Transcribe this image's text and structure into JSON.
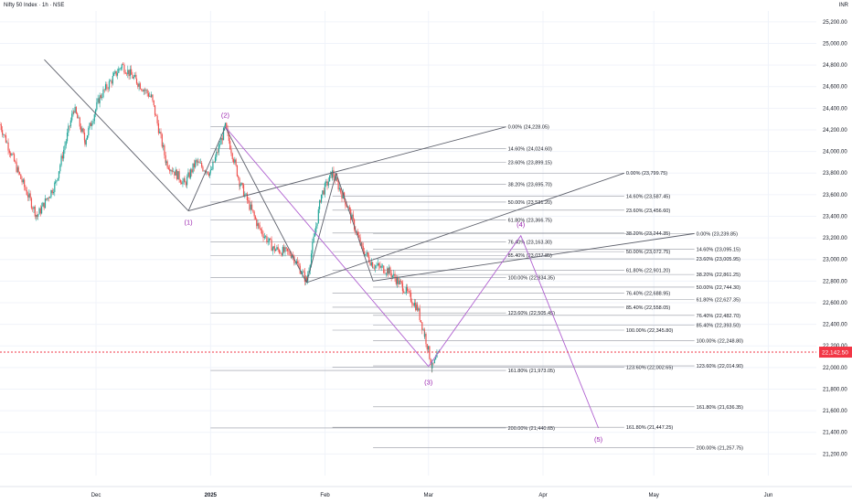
{
  "header": {
    "title": "Nifty 50 Index · 1h · NSE",
    "currency": "INR"
  },
  "colors": {
    "bull": "#26a69a",
    "bear": "#ef5350",
    "fib": "#9598a1",
    "trend": "#5d606b",
    "wave": "#b060d0",
    "wave_label": "#9c27b0",
    "price_tag": "#f23645",
    "grid": "#f0f3fa"
  },
  "chart_data": {
    "type": "candlestick",
    "title": "Nifty 50 Index · 1h · NSE",
    "ylim": [
      21000,
      25300
    ],
    "y_ticks": [
      21200,
      21400,
      21600,
      21800,
      22000,
      22200,
      22400,
      22600,
      22800,
      23000,
      23200,
      23400,
      23600,
      23800,
      24000,
      24200,
      24400,
      24600,
      24800,
      25000,
      25200
    ],
    "y_tick_labels": [
      "21,200.00",
      "21,400.00",
      "21,600.00",
      "21,800.00",
      "22,000.00",
      "22,200.00",
      "22,400.00",
      "22,600.00",
      "22,800.00",
      "23,000.00",
      "23,200.00",
      "23,400.00",
      "23,600.00",
      "23,800.00",
      "24,000.00",
      "24,200.00",
      "24,400.00",
      "24,600.00",
      "24,800.00",
      "25,000.00",
      "25,200.00"
    ],
    "x_range": [
      "2024-11-05",
      "2025-06-14"
    ],
    "x_ticks": [
      {
        "date": "2024-12-01",
        "label": "Dec"
      },
      {
        "date": "2025-01-01",
        "label": "2025"
      },
      {
        "date": "2025-02-01",
        "label": "Feb"
      },
      {
        "date": "2025-03-01",
        "label": "Mar"
      },
      {
        "date": "2025-04-01",
        "label": "Apr"
      },
      {
        "date": "2025-05-01",
        "label": "May"
      },
      {
        "date": "2025-06-01",
        "label": "Jun"
      }
    ],
    "price_path": [
      [
        "2024-11-05",
        24250
      ],
      [
        "2024-11-10",
        23800
      ],
      [
        "2024-11-15",
        23400
      ],
      [
        "2024-11-20",
        23700
      ],
      [
        "2024-11-25",
        24400
      ],
      [
        "2024-11-28",
        24100
      ],
      [
        "2024-12-02",
        24500
      ],
      [
        "2024-12-08",
        24800
      ],
      [
        "2024-12-12",
        24650
      ],
      [
        "2024-12-16",
        24500
      ],
      [
        "2024-12-20",
        23900
      ],
      [
        "2024-12-25",
        23700
      ],
      [
        "2024-12-28",
        23900
      ],
      [
        "2025-01-01",
        23800
      ],
      [
        "2025-01-05",
        24226
      ],
      [
        "2025-01-09",
        23700
      ],
      [
        "2025-01-14",
        23300
      ],
      [
        "2025-01-18",
        23100
      ],
      [
        "2025-01-23",
        23050
      ],
      [
        "2025-01-27",
        22800
      ],
      [
        "2025-01-31",
        23600
      ],
      [
        "2025-02-03",
        23800
      ],
      [
        "2025-02-07",
        23500
      ],
      [
        "2025-02-11",
        23100
      ],
      [
        "2025-02-14",
        22950
      ],
      [
        "2025-02-18",
        22900
      ],
      [
        "2025-02-22",
        22750
      ],
      [
        "2025-02-26",
        22550
      ],
      [
        "2025-02-28",
        22300
      ],
      [
        "2025-03-02",
        22000
      ],
      [
        "2025-03-04",
        22143
      ]
    ],
    "last_price": {
      "value": 22142.5,
      "label": "22,142.50"
    },
    "fib_sets": [
      {
        "x_start": "2025-01-01",
        "x_end": "2025-03-22",
        "levels": [
          {
            "value": 24228.05,
            "label": "0.00% (24,228.05)"
          },
          {
            "value": 24024.6,
            "label": "14.60% (24,024.60)"
          },
          {
            "value": 23899.15,
            "label": "23.60% (23,899.15)"
          },
          {
            "value": 23695.7,
            "label": "38.20% (23,695.70)"
          },
          {
            "value": 23531.2,
            "label": "50.00% (23,531.20)"
          },
          {
            "value": 23366.75,
            "label": "61.80% (23,366.75)"
          },
          {
            "value": 23163.3,
            "label": "76.40% (23,163.30)"
          },
          {
            "value": 23037.85,
            "label": "85.40% (23,037.85)"
          },
          {
            "value": 22834.35,
            "label": "100.00% (22,834.35)"
          },
          {
            "value": 22505.45,
            "label": "123.60% (22,505.45)"
          },
          {
            "value": 21973.05,
            "label": "161.80% (21,973.05)"
          },
          {
            "value": 21440.65,
            "label": "200.00% (21,440.65)"
          }
        ]
      },
      {
        "x_start": "2025-02-03",
        "x_end": "2025-04-23",
        "levels": [
          {
            "value": 23799.75,
            "label": "0.00% (23,799.75)"
          },
          {
            "value": 23587.45,
            "label": "14.60% (23,587.45)"
          },
          {
            "value": 23456.6,
            "label": "23.60% (23,456.60)"
          },
          {
            "value": 23244.35,
            "label": "38.20% (23,244.35)"
          },
          {
            "value": 23072.75,
            "label": "50.00% (23,072.75)"
          },
          {
            "value": 22901.2,
            "label": "61.80% (22,901.20)"
          },
          {
            "value": 22688.95,
            "label": "76.40% (22,688.95)"
          },
          {
            "value": 22558.05,
            "label": "85.40% (22,558.05)"
          },
          {
            "value": 22345.8,
            "label": "100.00% (22,345.80)"
          },
          {
            "value": 22002.65,
            "label": "123.60% (22,002.65)"
          },
          {
            "value": 21447.25,
            "label": "161.80% (21,447.25)"
          }
        ]
      },
      {
        "x_start": "2025-02-14",
        "x_end": "2025-05-12",
        "levels": [
          {
            "value": 23239.85,
            "label": "0.00% (23,239.85)"
          },
          {
            "value": 23095.15,
            "label": "14.60% (23,095.15)"
          },
          {
            "value": 23005.95,
            "label": "23.60% (23,005.95)"
          },
          {
            "value": 22861.25,
            "label": "38.20% (22,861.25)"
          },
          {
            "value": 22744.3,
            "label": "50.00% (22,744.30)"
          },
          {
            "value": 22627.35,
            "label": "61.80% (22,627.35)"
          },
          {
            "value": 22482.7,
            "label": "76.40% (22,482.70)"
          },
          {
            "value": 22393.5,
            "label": "85.40% (22,393.50)"
          },
          {
            "value": 22248.8,
            "label": "100.00% (22,248.80)"
          },
          {
            "value": 22014.9,
            "label": "123.60% (22,014.90)"
          },
          {
            "value": 21636.35,
            "label": "161.80% (21,636.35)"
          },
          {
            "value": 21257.75,
            "label": "200.00% (21,257.75)"
          }
        ]
      }
    ],
    "trend_lines": [
      {
        "from": [
          "2024-11-17",
          24850
        ],
        "to": [
          "2024-12-26",
          23450
        ]
      },
      {
        "from": [
          "2024-12-26",
          23450
        ],
        "to": [
          "2025-01-05",
          24226
        ]
      },
      {
        "from": [
          "2025-01-05",
          24226
        ],
        "to": [
          "2025-01-27",
          22786
        ]
      },
      {
        "from": [
          "2025-01-27",
          22786
        ],
        "to": [
          "2025-02-04",
          23799
        ]
      },
      {
        "from": [
          "2025-02-04",
          23799
        ],
        "to": [
          "2025-02-14",
          22800
        ]
      },
      {
        "from": [
          "2024-12-26",
          23450
        ],
        "to": [
          "2025-03-22",
          24228
        ]
      },
      {
        "from": [
          "2025-01-27",
          22786
        ],
        "to": [
          "2025-04-23",
          23799
        ]
      },
      {
        "from": [
          "2025-02-14",
          22800
        ],
        "to": [
          "2025-05-12",
          23240
        ]
      }
    ],
    "wave_path": [
      [
        "2025-01-05",
        24226
      ],
      [
        "2025-03-01",
        22010
      ],
      [
        "2025-03-26",
        23220
      ],
      [
        "2025-04-16",
        21440
      ]
    ],
    "wave_labels": [
      {
        "label": "(1)",
        "date": "2024-12-26",
        "value": 23340
      },
      {
        "label": "(2)",
        "date": "2025-01-05",
        "value": 24330
      },
      {
        "label": "(3)",
        "date": "2025-03-01",
        "value": 21860
      },
      {
        "label": "(4)",
        "date": "2025-03-26",
        "value": 23320
      },
      {
        "label": "(5)",
        "date": "2025-04-16",
        "value": 21330
      }
    ]
  }
}
